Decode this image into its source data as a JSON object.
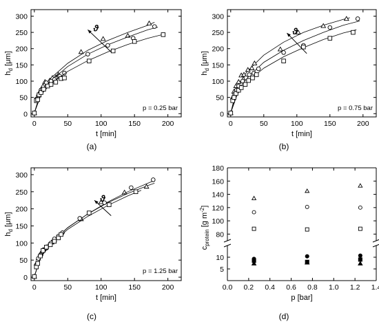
{
  "chart_data": [
    {
      "panel": "(a)",
      "type": "scatter",
      "xlabel": "t [min]",
      "ylabel_main": "h",
      "ylabel_sub": "d",
      "ylabel_unit": " [μm]",
      "xlim": [
        -5,
        220
      ],
      "ylim": [
        -10,
        320
      ],
      "xticks": [
        "0",
        "50",
        "100",
        "150",
        "200"
      ],
      "yticks": [
        "0",
        "50",
        "100",
        "150",
        "200",
        "250",
        "300"
      ],
      "annotation": "p = 0.25 bar",
      "arrow_label": "ϑ",
      "arrow": {
        "from": [
          115,
          190
        ],
        "to": [
          80,
          258
        ]
      },
      "series": [
        {
          "marker": "triangle",
          "points": [
            [
              0,
              2
            ],
            [
              4,
              43
            ],
            [
              7,
              57
            ],
            [
              9,
              70
            ],
            [
              13,
              85
            ],
            [
              16,
              98
            ],
            [
              23,
              102
            ],
            [
              27,
              110
            ],
            [
              32,
              112
            ],
            [
              36,
              120
            ],
            [
              70,
              190
            ],
            [
              103,
              230
            ],
            [
              140,
              240
            ],
            [
              172,
              278
            ]
          ],
          "curve": [
            [
              0,
              2
            ],
            [
              10,
              70
            ],
            [
              25,
              110
            ],
            [
              50,
              155
            ],
            [
              80,
              195
            ],
            [
              110,
              225
            ],
            [
              140,
              250
            ],
            [
              170,
              272
            ],
            [
              180,
              281
            ]
          ]
        },
        {
          "marker": "circle",
          "points": [
            [
              0,
              2
            ],
            [
              3,
              45
            ],
            [
              6,
              55
            ],
            [
              10,
              73
            ],
            [
              12,
              75
            ],
            [
              18,
              95
            ],
            [
              25,
              100
            ],
            [
              30,
              105
            ],
            [
              38,
              115
            ],
            [
              45,
              125
            ],
            [
              80,
              183
            ],
            [
              110,
              210
            ],
            [
              148,
              232
            ],
            [
              180,
              268
            ]
          ],
          "curve": [
            [
              0,
              2
            ],
            [
              10,
              65
            ],
            [
              25,
              102
            ],
            [
              50,
              145
            ],
            [
              80,
              183
            ],
            [
              110,
              212
            ],
            [
              140,
              236
            ],
            [
              170,
              258
            ],
            [
              185,
              266
            ]
          ]
        },
        {
          "marker": "square",
          "points": [
            [
              0,
              2
            ],
            [
              3,
              40
            ],
            [
              5,
              43
            ],
            [
              7,
              58
            ],
            [
              10,
              65
            ],
            [
              14,
              75
            ],
            [
              20,
              85
            ],
            [
              25,
              90
            ],
            [
              32,
              97
            ],
            [
              40,
              108
            ],
            [
              45,
              110
            ],
            [
              82,
              162
            ],
            [
              118,
              193
            ],
            [
              150,
              222
            ],
            [
              193,
              243
            ]
          ],
          "curve": [
            [
              0,
              2
            ],
            [
              10,
              58
            ],
            [
              25,
              93
            ],
            [
              50,
              130
            ],
            [
              80,
              163
            ],
            [
              110,
              190
            ],
            [
              140,
              213
            ],
            [
              170,
              232
            ],
            [
              195,
              245
            ]
          ]
        }
      ]
    },
    {
      "panel": "(b)",
      "type": "scatter",
      "xlabel": "t [min]",
      "ylabel_main": "h",
      "ylabel_sub": "d",
      "ylabel_unit": " [μm]",
      "xlim": [
        -5,
        220
      ],
      "ylim": [
        -10,
        320
      ],
      "xticks": [
        "0",
        "50",
        "100",
        "150",
        "200"
      ],
      "yticks": [
        "0",
        "50",
        "100",
        "150",
        "200",
        "250",
        "300"
      ],
      "annotation": "p = 0.75 bar",
      "arrow_label": "ϑ",
      "arrow": {
        "from": [
          115,
          185
        ],
        "to": [
          85,
          248
        ]
      },
      "series": [
        {
          "marker": "triangle",
          "points": [
            [
              0,
              2
            ],
            [
              3,
              50
            ],
            [
              5,
              68
            ],
            [
              8,
              85
            ],
            [
              12,
              98
            ],
            [
              16,
              118
            ],
            [
              20,
              120
            ],
            [
              26,
              135
            ],
            [
              32,
              140
            ],
            [
              36,
              155
            ],
            [
              75,
              198
            ],
            [
              102,
              250
            ],
            [
              140,
              270
            ],
            [
              175,
              292
            ]
          ],
          "curve": [
            [
              0,
              2
            ],
            [
              10,
              85
            ],
            [
              25,
              130
            ],
            [
              50,
              180
            ],
            [
              80,
              220
            ],
            [
              110,
              250
            ],
            [
              140,
              272
            ],
            [
              170,
              290
            ],
            [
              180,
              295
            ]
          ]
        },
        {
          "marker": "circle",
          "points": [
            [
              0,
              2
            ],
            [
              3,
              45
            ],
            [
              6,
              60
            ],
            [
              9,
              73
            ],
            [
              12,
              85
            ],
            [
              18,
              100
            ],
            [
              23,
              110
            ],
            [
              28,
              120
            ],
            [
              35,
              125
            ],
            [
              42,
              138
            ],
            [
              80,
              188
            ],
            [
              110,
              210
            ],
            [
              150,
              265
            ],
            [
              192,
              292
            ]
          ],
          "curve": [
            [
              0,
              2
            ],
            [
              10,
              70
            ],
            [
              25,
              110
            ],
            [
              50,
              158
            ],
            [
              80,
              195
            ],
            [
              110,
              225
            ],
            [
              140,
              250
            ],
            [
              170,
              272
            ],
            [
              195,
              285
            ]
          ]
        },
        {
          "marker": "square",
          "points": [
            [
              0,
              2
            ],
            [
              3,
              40
            ],
            [
              5,
              50
            ],
            [
              8,
              62
            ],
            [
              12,
              72
            ],
            [
              16,
              80
            ],
            [
              22,
              90
            ],
            [
              27,
              102
            ],
            [
              33,
              110
            ],
            [
              39,
              120
            ],
            [
              80,
              162
            ],
            [
              110,
              205
            ],
            [
              150,
              232
            ],
            [
              185,
              250
            ]
          ],
          "curve": [
            [
              0,
              2
            ],
            [
              10,
              60
            ],
            [
              25,
              98
            ],
            [
              50,
              140
            ],
            [
              80,
              175
            ],
            [
              110,
              203
            ],
            [
              140,
              228
            ],
            [
              170,
              248
            ],
            [
              190,
              258
            ]
          ]
        }
      ]
    },
    {
      "panel": "(c)",
      "type": "scatter",
      "xlabel": "t [min]",
      "ylabel_main": "h",
      "ylabel_sub": "d",
      "ylabel_unit": " [μm]",
      "xlim": [
        -5,
        220
      ],
      "ylim": [
        -10,
        320
      ],
      "xticks": [
        "0",
        "50",
        "100",
        "150",
        "200"
      ],
      "yticks": [
        "0",
        "50",
        "100",
        "150",
        "200",
        "250",
        "300"
      ],
      "annotation": "p = 1.25 bar",
      "arrow_label": "ϑ",
      "arrow": {
        "from": [
          115,
          180
        ],
        "to": [
          90,
          225
        ]
      },
      "series": [
        {
          "marker": "triangle",
          "points": [
            [
              0,
              2
            ],
            [
              3,
              40
            ],
            [
              6,
              55
            ],
            [
              9,
              68
            ],
            [
              13,
              80
            ],
            [
              18,
              88
            ],
            [
              22,
              95
            ],
            [
              26,
              102
            ],
            [
              30,
              110
            ],
            [
              35,
              118
            ],
            [
              70,
              170
            ],
            [
              100,
              220
            ],
            [
              135,
              248
            ],
            [
              168,
              265
            ]
          ],
          "curve": [
            [
              0,
              2
            ],
            [
              10,
              62
            ],
            [
              25,
              100
            ],
            [
              50,
              145
            ],
            [
              80,
              185
            ],
            [
              110,
              218
            ],
            [
              140,
              245
            ],
            [
              170,
              268
            ],
            [
              180,
              275
            ]
          ]
        },
        {
          "marker": "circle",
          "points": [
            [
              0,
              2
            ],
            [
              3,
              35
            ],
            [
              6,
              55
            ],
            [
              10,
              65
            ],
            [
              14,
              80
            ],
            [
              18,
              85
            ],
            [
              25,
              100
            ],
            [
              30,
              112
            ],
            [
              36,
              120
            ],
            [
              42,
              130
            ],
            [
              68,
              172
            ],
            [
              105,
              218
            ],
            [
              145,
              262
            ],
            [
              178,
              285
            ]
          ],
          "curve": [
            [
              0,
              2
            ],
            [
              10,
              62
            ],
            [
              25,
              100
            ],
            [
              50,
              145
            ],
            [
              80,
              185
            ],
            [
              110,
              220
            ],
            [
              140,
              250
            ],
            [
              170,
              275
            ],
            [
              180,
              283
            ]
          ]
        },
        {
          "marker": "square",
          "points": [
            [
              0,
              2
            ],
            [
              3,
              30
            ],
            [
              5,
              40
            ],
            [
              9,
              62
            ],
            [
              13,
              78
            ],
            [
              18,
              88
            ],
            [
              24,
              95
            ],
            [
              30,
              105
            ],
            [
              36,
              115
            ],
            [
              40,
              125
            ],
            [
              82,
              188
            ],
            [
              112,
              212
            ],
            [
              152,
              250
            ]
          ],
          "curve": [
            [
              0,
              2
            ],
            [
              10,
              60
            ],
            [
              25,
              96
            ],
            [
              50,
              140
            ],
            [
              80,
              178
            ],
            [
              110,
              210
            ],
            [
              140,
              238
            ],
            [
              160,
              254
            ]
          ]
        }
      ]
    },
    {
      "panel": "(d)",
      "type": "scatter",
      "xlabel": "p [bar]",
      "ylabel_main": "c",
      "ylabel_sub": "protein",
      "ylabel_unit": " [g m",
      "ylabel_sup": "-2",
      "ylabel_end": "]",
      "xlim": [
        0.0,
        1.4
      ],
      "xticks": [
        "0.0",
        "0.2",
        "0.4",
        "0.6",
        "0.8",
        "1.0",
        "1.2",
        "1.4"
      ],
      "yticks_upper": [
        "80",
        "100",
        "120",
        "140",
        "160",
        "180"
      ],
      "yticks_lower": [
        "5",
        "10"
      ],
      "break": true,
      "series": [
        {
          "marker": "triangle-open",
          "x": [
            0.25,
            0.75,
            1.25
          ],
          "values": [
            134,
            145,
            153
          ]
        },
        {
          "marker": "circle-open",
          "x": [
            0.25,
            0.75,
            1.25
          ],
          "values": [
            113,
            121,
            120
          ]
        },
        {
          "marker": "square-open",
          "x": [
            0.25,
            0.75,
            1.25
          ],
          "values": [
            88,
            87,
            88
          ]
        },
        {
          "marker": "circle-filled",
          "x": [
            0.25,
            0.75,
            1.25
          ],
          "values": [
            9.3,
            10.4,
            10.7
          ]
        },
        {
          "marker": "square-filled",
          "x": [
            0.25,
            0.75,
            1.25
          ],
          "values": [
            8.5,
            8.0,
            9.0
          ]
        },
        {
          "marker": "triangle-filled",
          "x": [
            0.25,
            0.75,
            1.25
          ],
          "values": [
            7.3,
            7.7,
            7.3
          ]
        }
      ]
    }
  ]
}
